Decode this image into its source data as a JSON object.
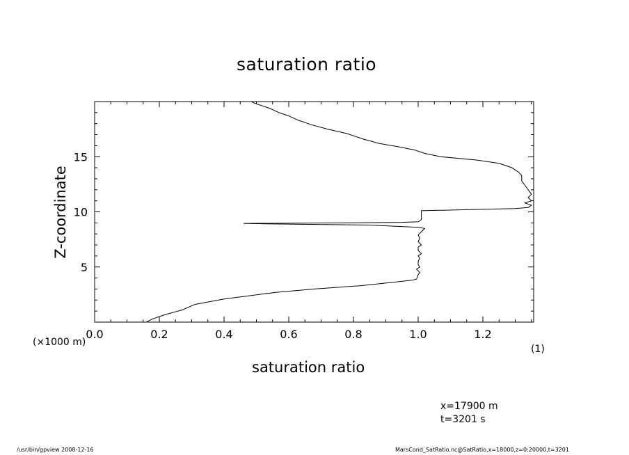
{
  "chart_data": {
    "type": "line",
    "title": "saturation ratio",
    "xlabel": "saturation ratio",
    "ylabel": "Z-coordinate",
    "xlim": [
      0.0,
      1.4
    ],
    "ylim": [
      0,
      20
    ],
    "x_ticks": [
      "0.0",
      "0.2",
      "0.4",
      "0.6",
      "0.8",
      "1.0",
      "1.2"
    ],
    "x_tick_values": [
      0.0,
      0.2,
      0.4,
      0.6,
      0.8,
      1.0,
      1.2
    ],
    "y_ticks": [
      "5",
      "10",
      "15"
    ],
    "y_tick_values": [
      5,
      10,
      15
    ],
    "grid": false,
    "series": [
      {
        "points": [
          [
            0.16,
            0.0
          ],
          [
            0.18,
            0.3
          ],
          [
            0.22,
            0.7
          ],
          [
            0.27,
            1.1
          ],
          [
            0.31,
            1.6
          ],
          [
            0.4,
            2.1
          ],
          [
            0.48,
            2.4
          ],
          [
            0.56,
            2.7
          ],
          [
            0.68,
            3.0
          ],
          [
            0.82,
            3.3
          ],
          [
            0.92,
            3.6
          ],
          [
            0.98,
            3.8
          ],
          [
            0.995,
            3.9
          ],
          [
            1.0,
            4.3
          ],
          [
            1.005,
            4.5
          ],
          [
            0.995,
            4.8
          ],
          [
            1.005,
            5.0
          ],
          [
            1.0,
            5.2
          ],
          [
            1.0,
            5.5
          ],
          [
            1.005,
            5.8
          ],
          [
            1.0,
            6.0
          ],
          [
            1.01,
            6.2
          ],
          [
            1.0,
            6.5
          ],
          [
            1.0,
            6.8
          ],
          [
            1.01,
            7.0
          ],
          [
            1.0,
            7.3
          ],
          [
            1.005,
            7.6
          ],
          [
            1.0,
            7.9
          ],
          [
            1.01,
            8.2
          ],
          [
            1.02,
            8.5
          ],
          [
            1.0,
            8.6
          ],
          [
            0.85,
            8.8
          ],
          [
            0.55,
            8.9
          ],
          [
            0.46,
            8.95
          ],
          [
            0.75,
            9.0
          ],
          [
            0.95,
            9.05
          ],
          [
            1.0,
            9.1
          ],
          [
            1.01,
            9.3
          ],
          [
            1.01,
            9.6
          ],
          [
            1.01,
            10.0
          ],
          [
            1.01,
            10.1
          ],
          [
            1.3,
            10.3
          ],
          [
            1.34,
            10.4
          ],
          [
            1.35,
            10.6
          ],
          [
            1.33,
            10.8
          ],
          [
            1.35,
            11.0
          ],
          [
            1.34,
            11.3
          ],
          [
            1.35,
            11.6
          ],
          [
            1.34,
            12.0
          ],
          [
            1.33,
            12.4
          ],
          [
            1.32,
            12.8
          ],
          [
            1.32,
            13.3
          ],
          [
            1.31,
            13.6
          ],
          [
            1.29,
            14.0
          ],
          [
            1.25,
            14.4
          ],
          [
            1.18,
            14.7
          ],
          [
            1.07,
            15.0
          ],
          [
            1.02,
            15.3
          ],
          [
            0.99,
            15.6
          ],
          [
            0.94,
            15.9
          ],
          [
            0.88,
            16.2
          ],
          [
            0.83,
            16.6
          ],
          [
            0.78,
            17.1
          ],
          [
            0.72,
            17.5
          ],
          [
            0.67,
            17.9
          ],
          [
            0.63,
            18.3
          ],
          [
            0.6,
            18.7
          ],
          [
            0.57,
            19.0
          ],
          [
            0.54,
            19.4
          ],
          [
            0.51,
            19.7
          ],
          [
            0.49,
            19.9
          ],
          [
            0.485,
            20.0
          ]
        ]
      }
    ]
  },
  "labels": {
    "scale_note": "(×1000 m)",
    "unit_note": "(1)",
    "info_x": "x=17900 m",
    "info_t": "t=3201 s",
    "footer_left": "/usr/bin/gpview   2008-12-16",
    "footer_right": "MarsCond_SatRatio.nc@SatRatio,x=18000,z=0:20000,t=3201"
  }
}
